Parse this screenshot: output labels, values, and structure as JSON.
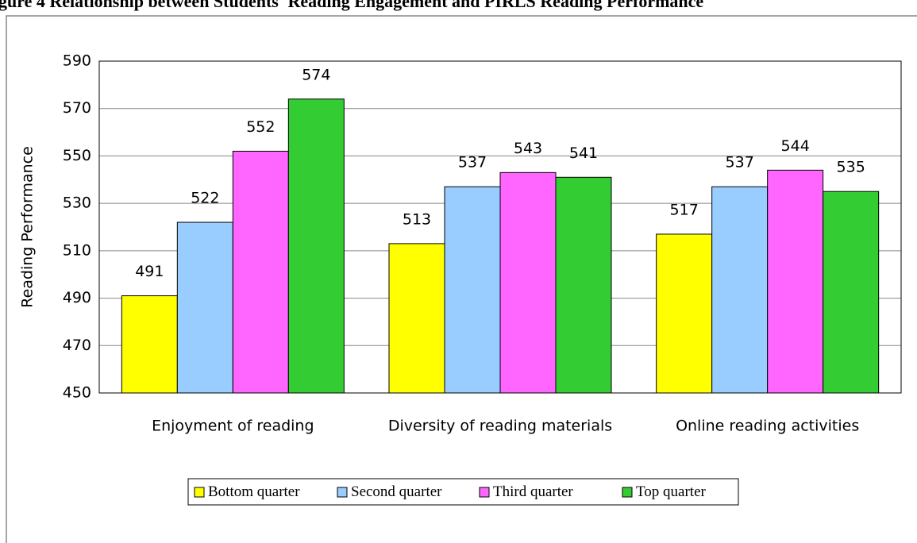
{
  "chart_data": {
    "type": "bar",
    "title": "gure 4 Relationship between Students' Reading Engagement and PIRLS Reading Performance",
    "y_label": "Reading Performance",
    "categories": [
      "Enjoyment of reading",
      "Diversity of reading materials",
      "Online reading activities"
    ],
    "series": [
      {
        "name": "Bottom quarter",
        "color": "#ffff00",
        "values": [
          491,
          513,
          517
        ]
      },
      {
        "name": "Second quarter",
        "color": "#99ccff",
        "values": [
          522,
          537,
          537
        ]
      },
      {
        "name": "Third quarter",
        "color": "#ff66ff",
        "values": [
          552,
          543,
          544
        ]
      },
      {
        "name": "Top quarter",
        "color": "#33cc33",
        "values": [
          574,
          541,
          535
        ]
      }
    ],
    "ylim": [
      450,
      590
    ],
    "yticks": [
      450,
      470,
      490,
      510,
      530,
      550,
      570,
      590
    ],
    "grid": true,
    "legend": "bottom"
  }
}
